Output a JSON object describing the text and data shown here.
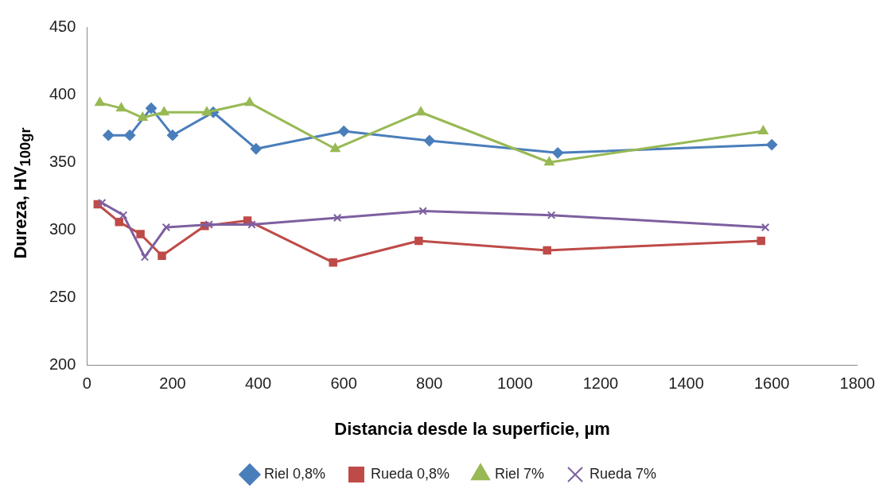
{
  "chart_data": {
    "type": "line",
    "xlabel": "Distancia desde la superficie, µm",
    "ylabel": "Dureza, HV$_{100gr}$",
    "xlim": [
      0,
      1800
    ],
    "xticks": [
      0,
      200,
      400,
      600,
      800,
      1000,
      1200,
      1400,
      1600,
      1800
    ],
    "ylim": [
      200,
      450
    ],
    "yticks": [
      200,
      250,
      300,
      350,
      400,
      450
    ],
    "grid": false,
    "legend": "bottom",
    "line_style": "solid",
    "series": [
      {
        "name": "Riel 0,8%",
        "color": "#4a7ebb",
        "marker": "diamond",
        "x": [
          50,
          100,
          150,
          200,
          295,
          395,
          600,
          800,
          1100,
          1600
        ],
        "values": [
          370,
          370,
          390,
          370,
          387,
          360,
          373,
          366,
          357,
          363
        ]
      },
      {
        "name": "Rueda 0,8%",
        "color": "#be4b48",
        "marker": "square",
        "x": [
          25,
          75,
          125,
          175,
          275,
          375,
          575,
          775,
          1075,
          1575
        ],
        "values": [
          319,
          306,
          297,
          281,
          303,
          307,
          276,
          292,
          285,
          292
        ]
      },
      {
        "name": "Riel 7%",
        "color": "#98b954",
        "marker": "triangle",
        "x": [
          30,
          80,
          130,
          180,
          280,
          380,
          580,
          780,
          1080,
          1580
        ],
        "values": [
          394,
          390,
          383,
          387,
          387,
          394,
          360,
          387,
          350,
          373
        ]
      },
      {
        "name": "Rueda 7%",
        "color": "#7d60a0",
        "marker": "cross",
        "x": [
          35,
          85,
          135,
          185,
          285,
          385,
          585,
          785,
          1085,
          1585
        ],
        "values": [
          320,
          311,
          280,
          302,
          304,
          304,
          309,
          314,
          311,
          302
        ]
      }
    ]
  }
}
